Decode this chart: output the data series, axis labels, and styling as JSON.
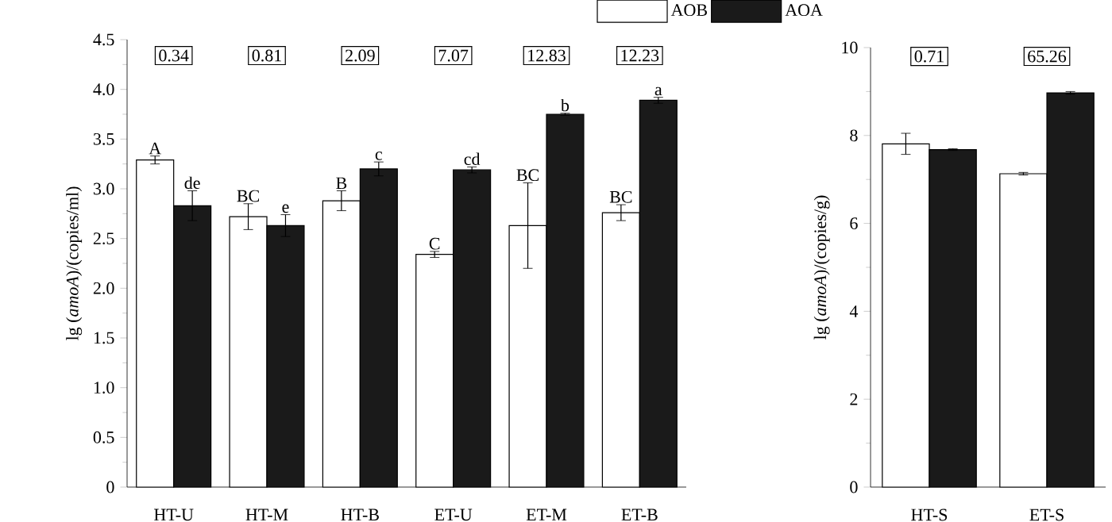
{
  "chart_data": [
    {
      "type": "bar",
      "ylabel": "lg (*amoA*)/(copies/ml)",
      "categories": [
        "HT-U",
        "HT-M",
        "HT-B",
        "ET-U",
        "ET-M",
        "ET-B"
      ],
      "series": [
        {
          "name": "AOB",
          "color": "#ffffff",
          "values": [
            3.29,
            2.72,
            2.88,
            2.34,
            2.63,
            2.76
          ],
          "errors": [
            0.04,
            0.13,
            0.1,
            0.03,
            0.43,
            0.08
          ],
          "value_labels": [
            "A",
            "BC",
            "B",
            "C",
            "BC",
            "BC"
          ]
        },
        {
          "name": "AOA",
          "color": "#1a1a1a",
          "values": [
            2.83,
            2.63,
            3.2,
            3.19,
            3.75,
            3.89
          ],
          "errors": [
            0.15,
            0.11,
            0.07,
            0.03,
            0.01,
            0.03
          ],
          "value_labels": [
            "de",
            "e",
            "c",
            "cd",
            "b",
            "a"
          ]
        }
      ],
      "ylim": [
        0,
        4.5
      ],
      "yticks": [
        0,
        0.5,
        {
          "value": 1,
          "label": "1.0"
        },
        1.5,
        {
          "value": 2,
          "label": "2.0"
        },
        2.5,
        {
          "value": 3,
          "label": "3.0"
        },
        3.5,
        {
          "value": 4,
          "label": "4.0"
        },
        4.5
      ],
      "legend": "top",
      "annotations": [
        {
          "text": "0.34",
          "x": "HT-U",
          "y": 4.34
        },
        {
          "text": "0.81",
          "x": "HT-M",
          "y": 4.34
        },
        {
          "text": "2.09",
          "x": "HT-B",
          "y": 4.34
        },
        {
          "text": "7.07",
          "x": "ET-U",
          "y": 4.34
        },
        {
          "text": "12.83",
          "x": "ET-M",
          "y": 4.34
        },
        {
          "text": "12.23",
          "x": "ET-B",
          "y": 4.34
        }
      ]
    },
    {
      "type": "bar",
      "ylabel": "lg (*amoA*)/(copies/g)",
      "categories": [
        "HT-S",
        "ET-S"
      ],
      "series": [
        {
          "color": "#ffffff",
          "values": [
            7.81,
            7.13
          ],
          "errors": [
            0.24,
            0.03
          ]
        },
        {
          "color": "#1a1a1a",
          "values": [
            7.68,
            8.97
          ],
          "errors": [
            0.02,
            0.03
          ]
        }
      ],
      "ylim": [
        0,
        10
      ],
      "yticks": [
        0,
        2,
        4,
        6,
        8,
        10
      ],
      "annotations": [
        {
          "text": "0.71",
          "x": "HT-S",
          "y": 9.8
        },
        {
          "text": "65.26",
          "x": "ET-S",
          "y": 9.8
        }
      ]
    }
  ]
}
